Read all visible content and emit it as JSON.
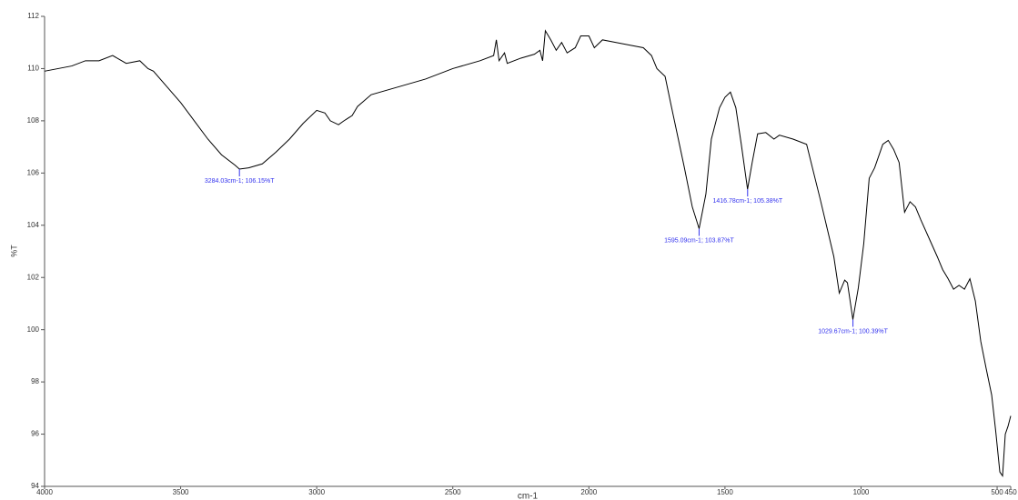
{
  "chart_data": {
    "type": "line",
    "xlabel": "cm-1",
    "ylabel": "%T",
    "xlim": [
      4000,
      450
    ],
    "xticks": [
      4000,
      3500,
      3000,
      2500,
      2000,
      1500,
      1000,
      500,
      450
    ],
    "ylim": [
      94,
      112
    ],
    "yticks": [
      94,
      96,
      98,
      100,
      102,
      104,
      106,
      108,
      110,
      112
    ],
    "series": [
      {
        "color": "#000000",
        "x": [
          4000,
          3900,
          3850,
          3800,
          3750,
          3700,
          3650,
          3620,
          3600,
          3550,
          3500,
          3450,
          3400,
          3350,
          3300,
          3284,
          3250,
          3200,
          3150,
          3100,
          3050,
          3000,
          2970,
          2950,
          2920,
          2900,
          2870,
          2850,
          2800,
          2700,
          2600,
          2500,
          2400,
          2350,
          2340,
          2330,
          2310,
          2300,
          2250,
          2200,
          2180,
          2170,
          2160,
          2140,
          2120,
          2100,
          2080,
          2050,
          2030,
          2000,
          1980,
          1950,
          1900,
          1850,
          1800,
          1770,
          1750,
          1720,
          1700,
          1650,
          1620,
          1595,
          1570,
          1550,
          1520,
          1500,
          1480,
          1460,
          1440,
          1417,
          1400,
          1380,
          1350,
          1320,
          1300,
          1250,
          1200,
          1150,
          1100,
          1080,
          1060,
          1050,
          1030,
          1010,
          990,
          970,
          950,
          920,
          900,
          880,
          860,
          840,
          820,
          800,
          780,
          750,
          720,
          700,
          680,
          660,
          640,
          620,
          600,
          580,
          560,
          540,
          520,
          505,
          490,
          480,
          470,
          460,
          450
        ],
        "values": [
          109.9,
          110.1,
          110.3,
          110.3,
          110.5,
          110.2,
          110.3,
          110.0,
          109.9,
          109.3,
          108.7,
          108.0,
          107.3,
          106.7,
          106.3,
          106.15,
          106.2,
          106.35,
          106.8,
          107.3,
          107.9,
          108.4,
          108.3,
          108.0,
          107.85,
          108.0,
          108.2,
          108.55,
          109.0,
          109.3,
          109.6,
          110.0,
          110.3,
          110.5,
          111.1,
          110.3,
          110.6,
          110.2,
          110.4,
          110.55,
          110.7,
          110.3,
          111.45,
          111.1,
          110.7,
          111.0,
          110.6,
          110.8,
          111.25,
          111.25,
          110.8,
          111.1,
          111.0,
          110.9,
          110.8,
          110.5,
          110.0,
          109.7,
          108.7,
          106.25,
          104.7,
          103.87,
          105.2,
          107.3,
          108.5,
          108.9,
          109.1,
          108.5,
          107.1,
          105.38,
          106.4,
          107.5,
          107.55,
          107.3,
          107.45,
          107.3,
          107.1,
          105.0,
          102.8,
          101.4,
          101.9,
          101.8,
          100.39,
          101.6,
          103.3,
          105.8,
          106.2,
          107.1,
          107.25,
          106.9,
          106.4,
          104.5,
          104.9,
          104.7,
          104.2,
          103.5,
          102.8,
          102.3,
          101.95,
          101.55,
          101.7,
          101.55,
          101.95,
          101.1,
          99.55,
          98.5,
          97.5,
          96.1,
          94.55,
          94.4,
          96.0,
          96.3,
          96.7
        ]
      }
    ],
    "annotations": [
      {
        "text": "3284.03cm-1; 106.15%T",
        "x": 3284.03,
        "y": 106.15
      },
      {
        "text": "1595.09cm-1; 103.87%T",
        "x": 1595.09,
        "y": 103.87
      },
      {
        "text": "1416.78cm-1; 105.38%T",
        "x": 1416.78,
        "y": 105.38
      },
      {
        "text": "1029.67cm-1; 100.39%T",
        "x": 1029.67,
        "y": 100.39
      }
    ],
    "annotation_color": "#3333ee"
  }
}
